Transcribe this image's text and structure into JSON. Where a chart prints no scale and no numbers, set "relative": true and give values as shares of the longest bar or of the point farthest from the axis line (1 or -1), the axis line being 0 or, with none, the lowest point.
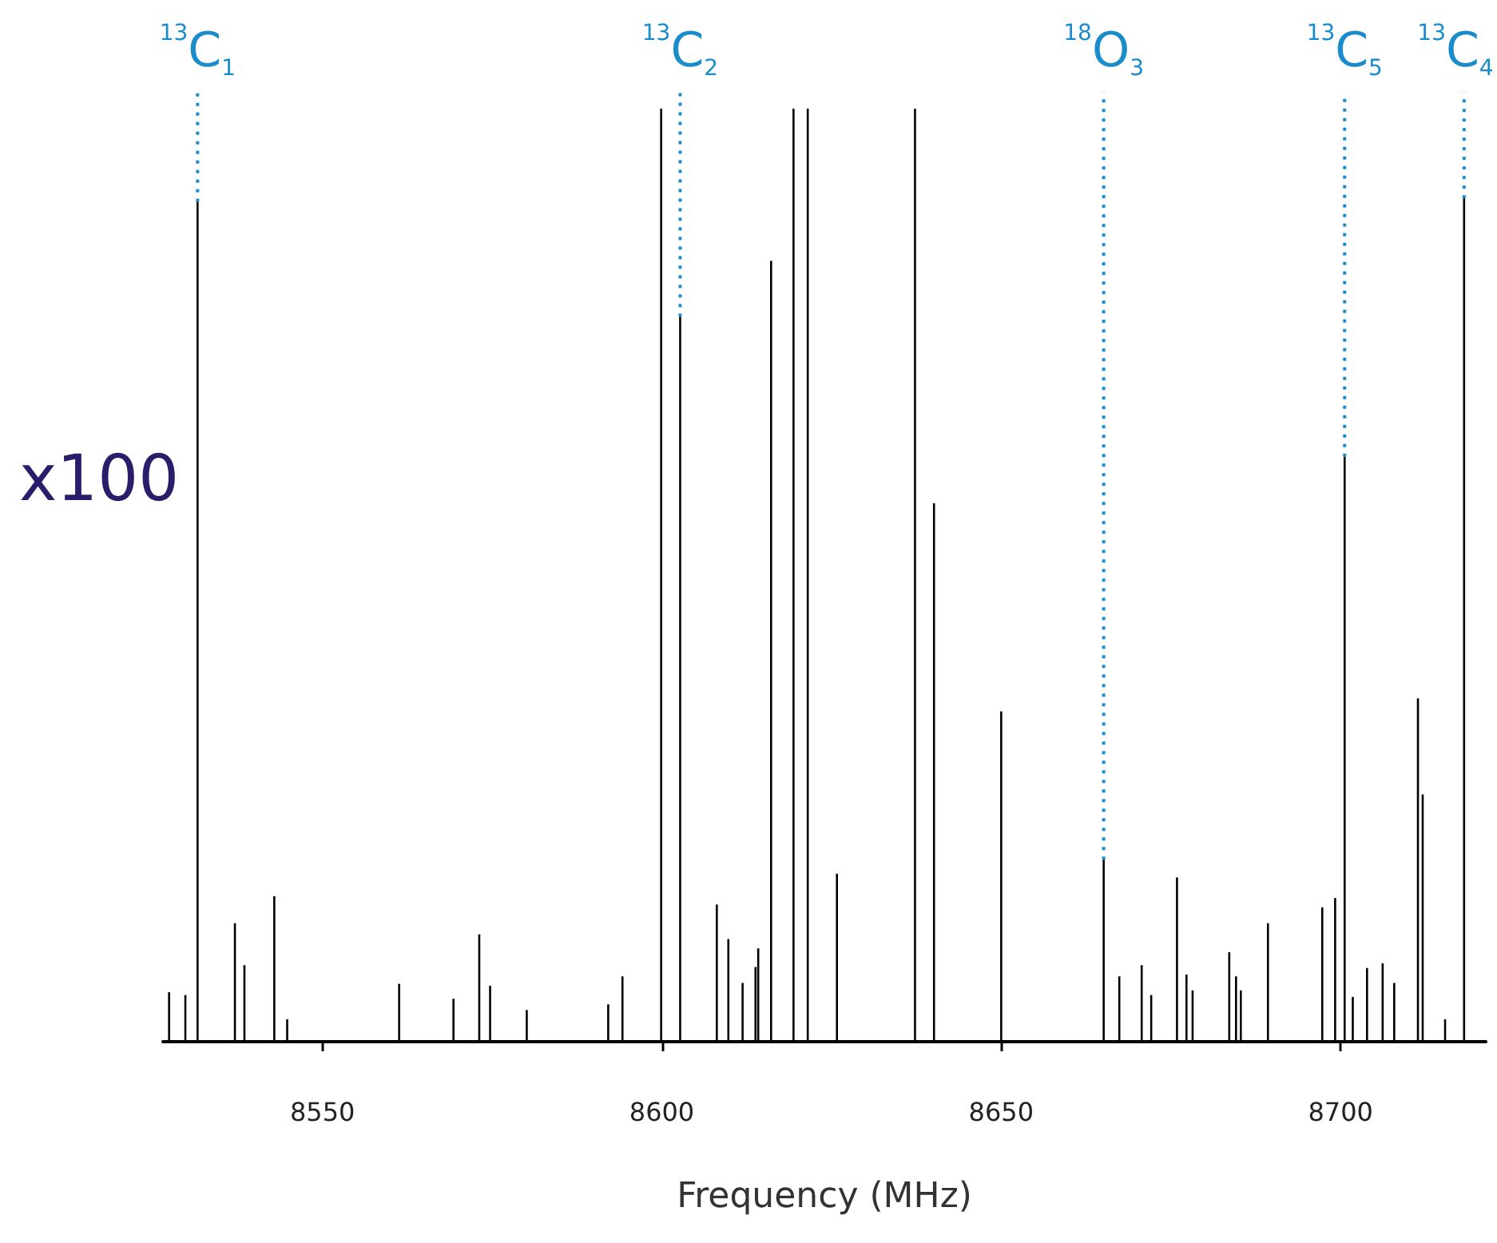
{
  "chart_data": {
    "type": "bar",
    "relative": true,
    "xlabel": "Frequency (MHz)",
    "xlim": [
      8526.5,
      8721.4
    ],
    "xticks": [
      8550,
      8600,
      8650,
      8700
    ],
    "series": [
      {
        "color": "#000000",
        "x": [
          8527.4,
          8529.8,
          8531.6,
          8537.1,
          8538.5,
          8542.9,
          8544.8,
          8561.3,
          8569.3,
          8573.1,
          8574.7,
          8580.1,
          8592.1,
          8594.2,
          8599.9,
          8602.7,
          8608.1,
          8609.8,
          8611.9,
          8613.8,
          8614.2,
          8616.1,
          8619.4,
          8621.5,
          8625.8,
          8637.3,
          8640.1,
          8650.0,
          8665.1,
          8667.4,
          8670.7,
          8672.1,
          8675.9,
          8677.3,
          8678.2,
          8683.6,
          8684.6,
          8685.3,
          8689.3,
          8697.3,
          8699.2,
          8700.6,
          8701.8,
          8703.9,
          8706.2,
          8707.9,
          8711.4,
          8712.1,
          8715.4,
          8718.2
        ],
        "values": [
          0.053,
          0.05,
          0.9,
          0.127,
          0.082,
          0.156,
          0.024,
          0.062,
          0.046,
          0.115,
          0.06,
          0.034,
          0.04,
          0.07,
          1,
          0.777,
          0.147,
          0.11,
          0.063,
          0.08,
          0.1,
          0.837,
          1,
          1,
          0.18,
          1,
          0.577,
          0.354,
          0.195,
          0.07,
          0.082,
          0.05,
          0.176,
          0.072,
          0.055,
          0.096,
          0.07,
          0.055,
          0.127,
          0.144,
          0.154,
          0.627,
          0.048,
          0.079,
          0.084,
          0.063,
          0.368,
          0.265,
          0.024,
          0.904
        ]
      }
    ],
    "annotations": [
      "x100",
      {
        "text": "$^{13}$C$_{1}$",
        "x": 8531.6,
        "y": 0.9
      },
      {
        "text": "$^{13}$C$_{2}$",
        "x": 8602.7,
        "y": 0.777
      },
      {
        "text": "$^{18}$O$_{3}$",
        "x": 8665.1,
        "y": 0.195
      },
      {
        "text": "$^{13}$C$_{5}$",
        "x": 8700.6,
        "y": 0.627
      },
      {
        "text": "$^{13}$C$_{4}$",
        "x": 8718.2,
        "y": 0.904
      }
    ],
    "grid": false
  }
}
